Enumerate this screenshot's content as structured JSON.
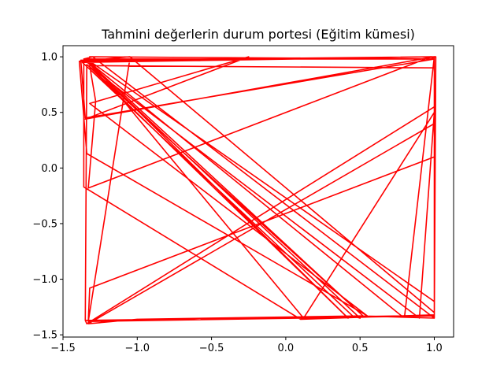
{
  "chart_data": {
    "type": "line",
    "title": "Tahmini değerlerin durum portesi (Eğitim kümesi)",
    "xlabel": "",
    "ylabel": "",
    "xlim": [
      -1.5,
      1.13
    ],
    "ylim": [
      -1.52,
      1.1
    ],
    "x_ticks": [
      -1.5,
      -1.0,
      -0.5,
      0.0,
      0.5,
      1.0
    ],
    "x_tick_labels": [
      "−1.5",
      "−1.0",
      "−0.5",
      "0.0",
      "0.5",
      "1.0"
    ],
    "y_ticks": [
      -1.5,
      -1.0,
      -0.5,
      0.0,
      0.5,
      1.0
    ],
    "y_tick_labels": [
      "−1.5",
      "−1.0",
      "−0.5",
      "0.0",
      "0.5",
      "1.0"
    ],
    "grid": false,
    "series": [
      {
        "color": "#ff0000",
        "x": [
          -1.33,
          1.0,
          1.01,
          -1.38,
          -1.35,
          1.0,
          1.0,
          -1.32,
          -1.28,
          -1.33,
          0.98,
          -1.37,
          -1.33,
          0.45,
          0.5,
          -1.36,
          -1.3,
          1.0,
          1.01,
          -1.39,
          -1.34,
          0.55,
          -1.32,
          -0.25,
          -1.35,
          1.0,
          1.0,
          -1.05,
          -1.3,
          1.0,
          1.0,
          -1.34,
          -1.35,
          0.78,
          -1.35,
          0.52,
          -1.33,
          0.42,
          -1.35,
          0.98,
          1.0,
          -1.36,
          -1.36,
          0.1,
          1.0,
          1.0,
          -1.33,
          -1.0,
          0.5,
          1.0,
          1.0,
          -1.32,
          -1.33,
          -1.05,
          -1.32,
          0.12,
          1.0,
          0.9,
          -1.34,
          -1.35,
          0.8,
          1.0,
          1.0,
          -1.33,
          -1.32,
          1.0
        ],
        "y": [
          -1.38,
          -1.33,
          1.0,
          0.97,
          0.45,
          0.98,
          0.9,
          0.92,
          0.6,
          -0.18,
          1.0,
          0.95,
          0.9,
          -1.33,
          -1.35,
          0.98,
          1.0,
          -1.35,
          1.0,
          0.96,
          0.13,
          -1.33,
          0.58,
          1.0,
          0.44,
          1.0,
          -1.3,
          1.0,
          0.97,
          1.0,
          0.55,
          -1.4,
          -1.37,
          -1.33,
          0.98,
          -1.33,
          0.92,
          -1.35,
          0.98,
          0.98,
          1.0,
          0.95,
          -0.17,
          -1.36,
          -1.32,
          0.4,
          -1.4,
          -1.36,
          -1.33,
          -1.35,
          0.1,
          -1.08,
          -1.38,
          0.98,
          0.97,
          -1.35,
          0.5,
          -1.35,
          0.93,
          -1.37,
          -1.33,
          1.0,
          -1.2,
          0.97,
          1.0,
          0.98
        ]
      }
    ]
  }
}
